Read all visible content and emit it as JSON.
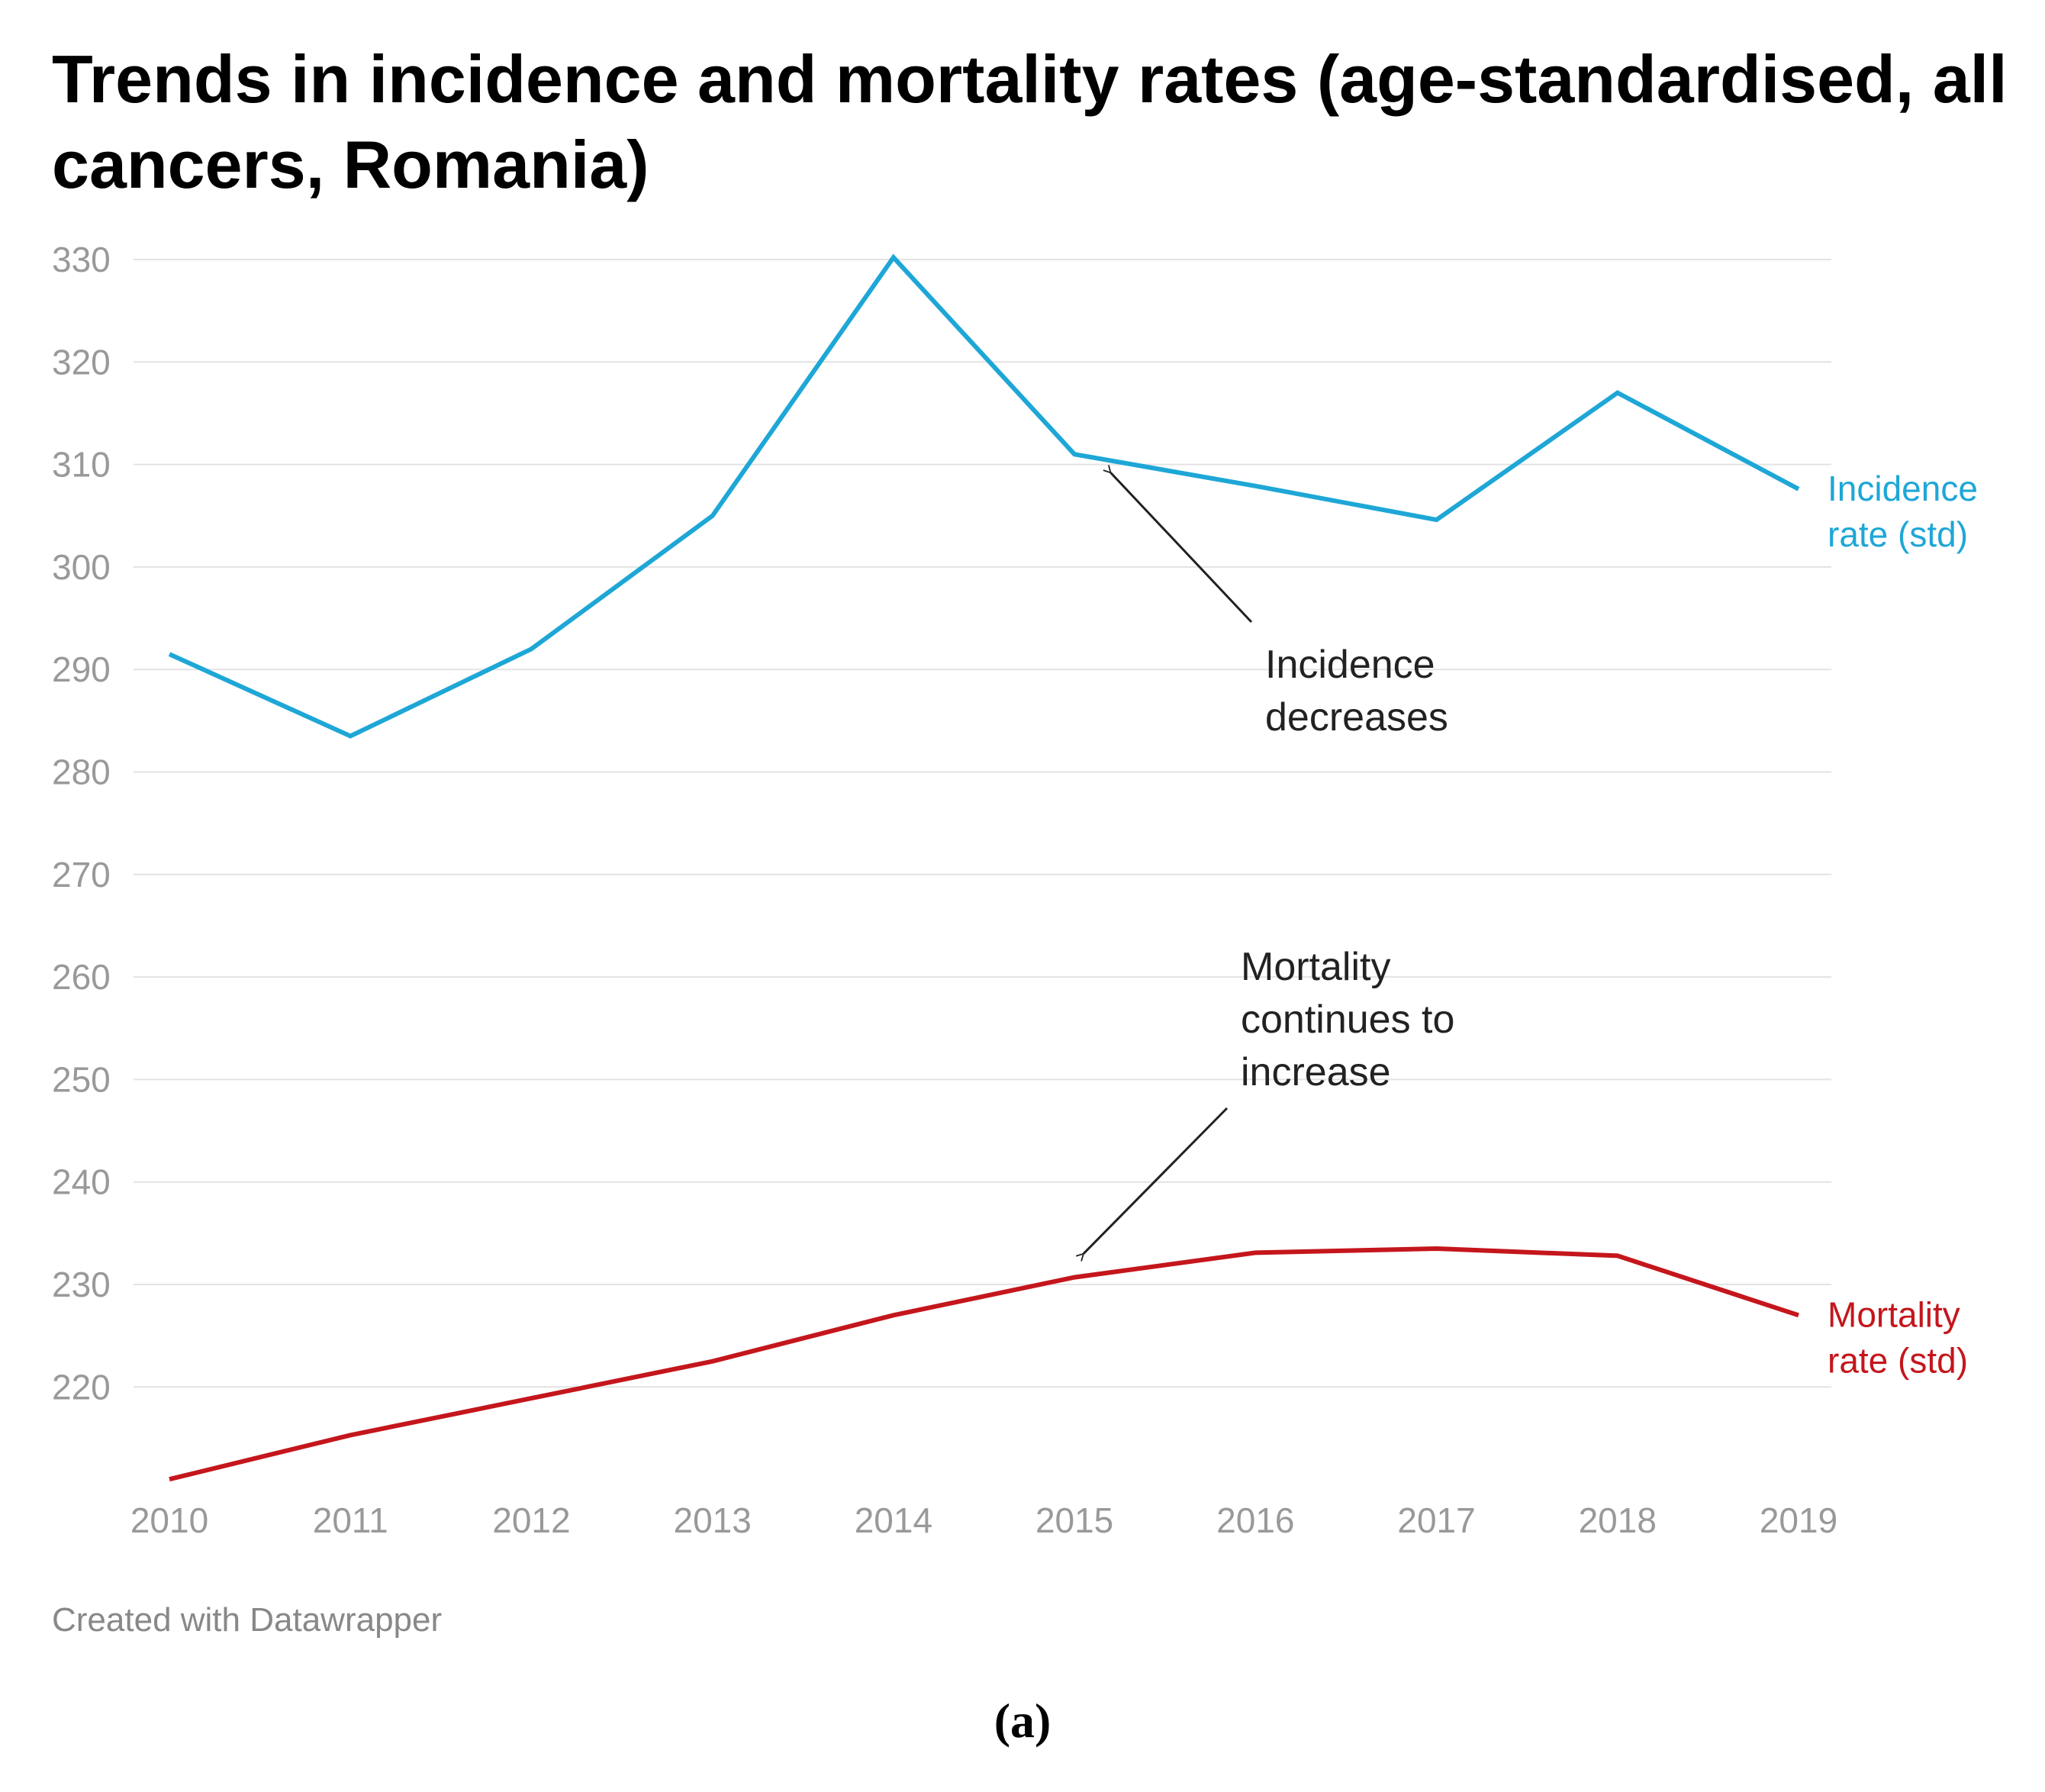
{
  "chart_data": {
    "type": "line",
    "title": "Trends in incidence and mortality rates (age-standardised, all cancers, Romania)",
    "xlabel": "",
    "ylabel": "",
    "x": [
      2010,
      2011,
      2012,
      2013,
      2014,
      2015,
      2016,
      2017,
      2018,
      2019
    ],
    "x_tick_labels": [
      "2010",
      "2011",
      "2012",
      "2013",
      "2014",
      "2015",
      "2016",
      "2017",
      "2018",
      "2019"
    ],
    "y_ticks": [
      220,
      230,
      240,
      250,
      260,
      270,
      280,
      290,
      300,
      310,
      320,
      330
    ],
    "y_tick_labels": [
      "220",
      "230",
      "240",
      "250",
      "260",
      "270",
      "280",
      "290",
      "300",
      "310",
      "320",
      "330"
    ],
    "ylim": [
      210,
      330
    ],
    "grid": "horizontal",
    "series": [
      {
        "name": "Incidence rate (std)",
        "label_lines": [
          "Incidence",
          "rate (std)"
        ],
        "color": "#1ea7d6",
        "values": [
          291.5,
          283.5,
          292.0,
          305.0,
          330.2,
          311.0,
          307.9,
          304.6,
          317.0,
          307.6
        ]
      },
      {
        "name": "Mortality rate (std)",
        "label_lines": [
          "Mortality",
          "rate (std)"
        ],
        "color": "#c4161c",
        "values": [
          211.0,
          215.3,
          218.9,
          222.5,
          227.0,
          230.7,
          233.1,
          233.5,
          232.8,
          227.0
        ]
      }
    ],
    "annotations": [
      {
        "text_lines": [
          "Incidence",
          "decreases"
        ],
        "points_to": {
          "x": 2015.2,
          "y": 309.2
        }
      },
      {
        "text_lines": [
          "Mortality",
          "continues to",
          "increase"
        ],
        "points_to": {
          "x": 2015.05,
          "y": 233.0
        }
      }
    ]
  },
  "credit": "Created with Datawrapper",
  "panel_label": "(a)"
}
